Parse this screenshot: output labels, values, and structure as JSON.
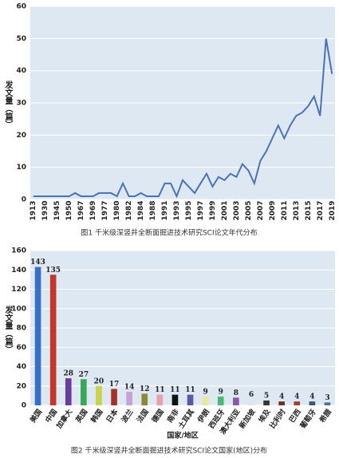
{
  "chart_data": [
    {
      "type": "line",
      "caption": "图1 千米级深竖井全断面掘进技术研究SCI论文年代分布",
      "y_label": "发文量（篇）",
      "categories": [
        "1913",
        null,
        "1930",
        null,
        "1945",
        null,
        "1950",
        null,
        "1967",
        null,
        "1969",
        null,
        "1977",
        null,
        "1980",
        null,
        "1982",
        null,
        "1984",
        null,
        "1988",
        null,
        "1991",
        null,
        "1993",
        null,
        "1995",
        null,
        "1997",
        null,
        "1999",
        null,
        "2001",
        null,
        "2003",
        null,
        "2005",
        null,
        "2007",
        null,
        "2009",
        null,
        "2011",
        null,
        "2013",
        null,
        "2015",
        null,
        "2017",
        null,
        "2019"
      ],
      "series": [
        {
          "color": "#4a72b8",
          "values": [
            1,
            1,
            1,
            1,
            1,
            1,
            1,
            2,
            1,
            1,
            1,
            2,
            2,
            2,
            1,
            5,
            1,
            1,
            2,
            1,
            1,
            1,
            5,
            5,
            1,
            6,
            4,
            2,
            5,
            8,
            4,
            7,
            6,
            8,
            7,
            11,
            9,
            5,
            12,
            15,
            19,
            23,
            19,
            23,
            26,
            27,
            29,
            32,
            26,
            50,
            39
          ]
        }
      ],
      "ylim": [
        0,
        60
      ],
      "yticks": [
        0,
        10,
        20,
        30,
        40,
        50,
        60
      ],
      "background": "#dde8f3"
    },
    {
      "type": "bar",
      "caption": "图2 千米级深竖井全断面掘进技术研究SCI论文国家(地区)分布",
      "x_label": "国家/地区",
      "y_label": "发文量（篇）",
      "categories": [
        "美国",
        "中国",
        "加拿大",
        "英国",
        "韩国",
        "日本",
        "波兰",
        "法国",
        "德国",
        "南非",
        "土耳其",
        "伊朗",
        "西班牙",
        "澳大利亚",
        "新加坡",
        "埃及",
        "比利时",
        "巴西",
        "葡萄牙",
        "希腊"
      ],
      "values": [
        143,
        135,
        28,
        27,
        20,
        17,
        14,
        12,
        11,
        11,
        11,
        9,
        9,
        8,
        6,
        5,
        4,
        4,
        4,
        3
      ],
      "colors": [
        "#3a6fc4",
        "#c0392b",
        "#6a3d9a",
        "#3aa657",
        "#c8d44a",
        "#a0322a",
        "#c8a0d8",
        "#8a8a3a",
        "#e8a0b0",
        "#111111",
        "#5a5aa0",
        "#e8e8a0",
        "#4ab870",
        "#8a5aa8",
        "#d8e8f0",
        "#333333",
        "#6a3020",
        "#a04030",
        "#405870",
        "#5070a0"
      ],
      "ylim": [
        0,
        160
      ],
      "yticks": [
        0,
        20,
        40,
        60,
        80,
        100,
        120,
        140,
        160
      ],
      "background": "#dde8f3"
    }
  ]
}
